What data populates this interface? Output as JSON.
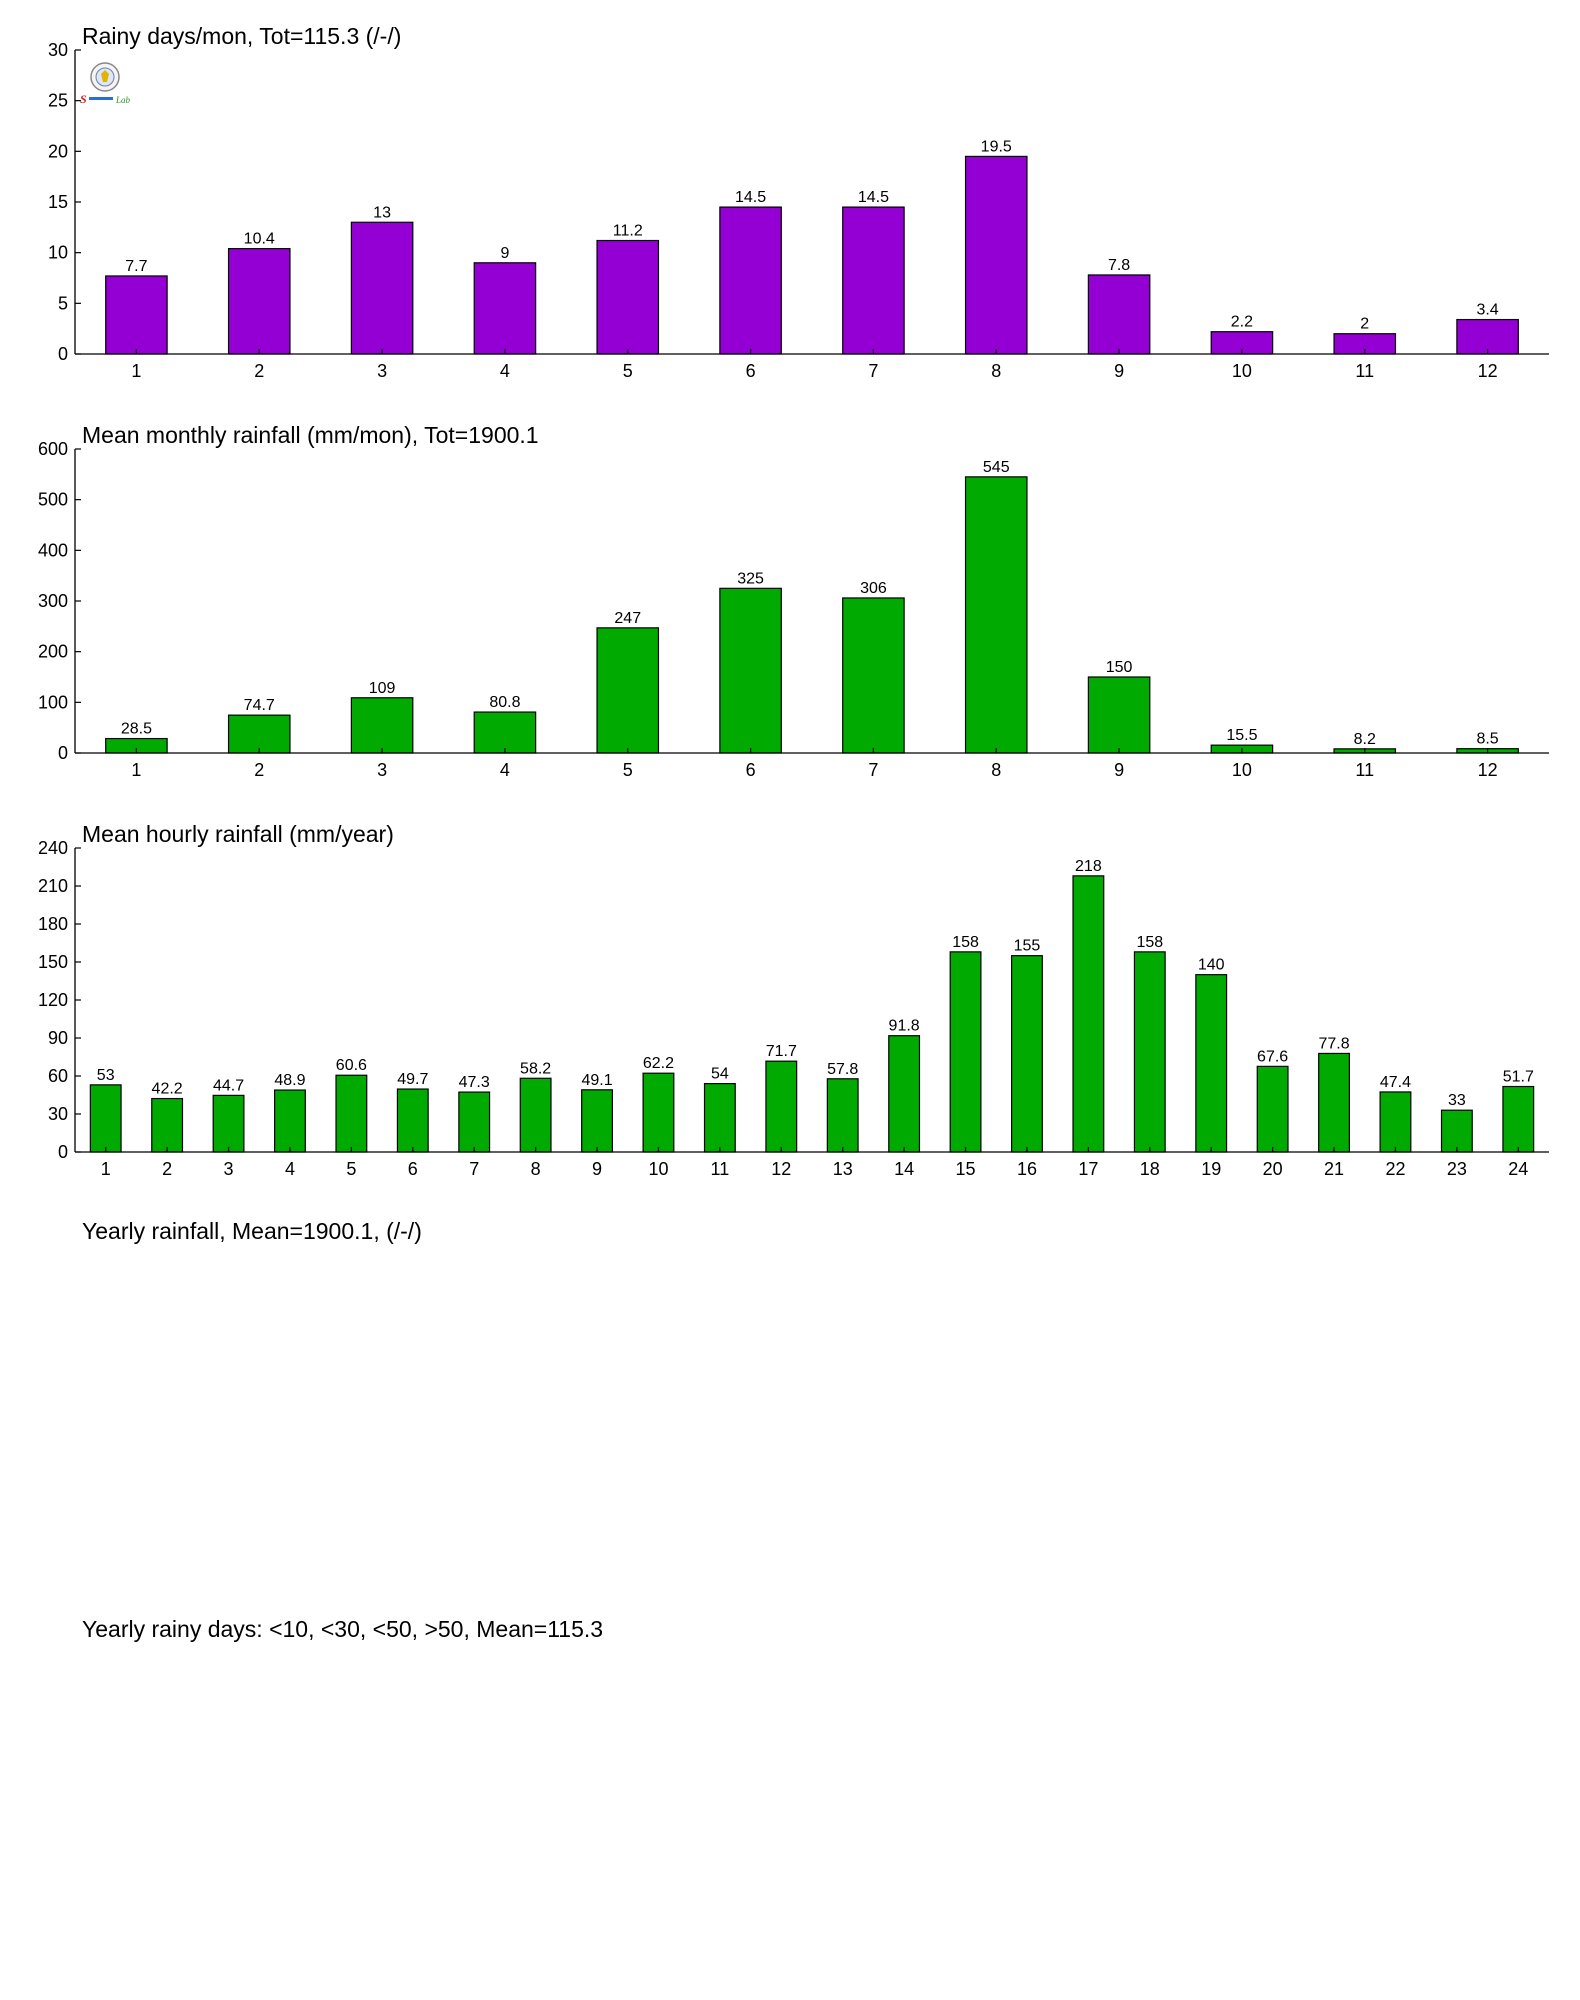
{
  "chart_data": [
    {
      "type": "bar",
      "title": "Rainy days/mon, Tot=115.3 (/-/)",
      "categories": [
        "1",
        "2",
        "3",
        "4",
        "5",
        "6",
        "7",
        "8",
        "9",
        "10",
        "11",
        "12"
      ],
      "values": [
        7.7,
        10.4,
        13,
        9,
        11.2,
        14.5,
        14.5,
        19.5,
        7.8,
        2.2,
        2,
        3.4
      ],
      "labels": [
        "7.7",
        "10.4",
        "13",
        "9",
        "11.2",
        "14.5",
        "14.5",
        "19.5",
        "7.8",
        "2.2",
        "2",
        "3.4"
      ],
      "ylim": [
        0,
        30
      ],
      "yticks": [
        0,
        5,
        10,
        15,
        20,
        25,
        30
      ],
      "color": "#9400D3",
      "grid": false
    },
    {
      "type": "bar",
      "title": "Mean monthly rainfall (mm/mon), Tot=1900.1",
      "categories": [
        "1",
        "2",
        "3",
        "4",
        "5",
        "6",
        "7",
        "8",
        "9",
        "10",
        "11",
        "12"
      ],
      "values": [
        28.5,
        74.7,
        109,
        80.8,
        247,
        325,
        306,
        545,
        150,
        15.5,
        8.2,
        8.5
      ],
      "labels": [
        "28.5",
        "74.7",
        "109",
        "80.8",
        "247",
        "325",
        "306",
        "545",
        "150",
        "15.5",
        "8.2",
        "8.5"
      ],
      "ylim": [
        0,
        600
      ],
      "yticks": [
        0,
        100,
        200,
        300,
        400,
        500,
        600
      ],
      "color": "#00AA00",
      "grid": false
    },
    {
      "type": "bar",
      "title": "Mean hourly rainfall (mm/year)",
      "categories": [
        "1",
        "2",
        "3",
        "4",
        "5",
        "6",
        "7",
        "8",
        "9",
        "10",
        "11",
        "12",
        "13",
        "14",
        "15",
        "16",
        "17",
        "18",
        "19",
        "20",
        "21",
        "22",
        "23",
        "24"
      ],
      "values": [
        53,
        42.2,
        44.7,
        48.9,
        60.6,
        49.7,
        47.3,
        58.2,
        49.1,
        62.2,
        54,
        71.7,
        57.8,
        91.8,
        158,
        155,
        218,
        158,
        140,
        67.6,
        77.8,
        47.4,
        33,
        51.7
      ],
      "labels": [
        "53",
        "42.2",
        "44.7",
        "48.9",
        "60.6",
        "49.7",
        "47.3",
        "58.2",
        "49.1",
        "62.2",
        "54",
        "71.7",
        "57.8",
        "91.8",
        "158",
        "155",
        "218",
        "158",
        "140",
        "67.6",
        "77.8",
        "47.4",
        "33",
        "51.7"
      ],
      "ylim": [
        0,
        240
      ],
      "yticks": [
        0,
        30,
        60,
        90,
        120,
        150,
        180,
        210,
        240
      ],
      "color": "#00AA00",
      "grid": false
    }
  ],
  "sections": {
    "yearly_rainfall_title": "Yearly rainfall, Mean=1900.1, (/-/)",
    "yearly_rainy_days_title": "Yearly rainy days: <10, <30, <50, >50, Mean=115.3"
  },
  "logo": {
    "name": "station-logo-icon",
    "text": "Lab"
  }
}
